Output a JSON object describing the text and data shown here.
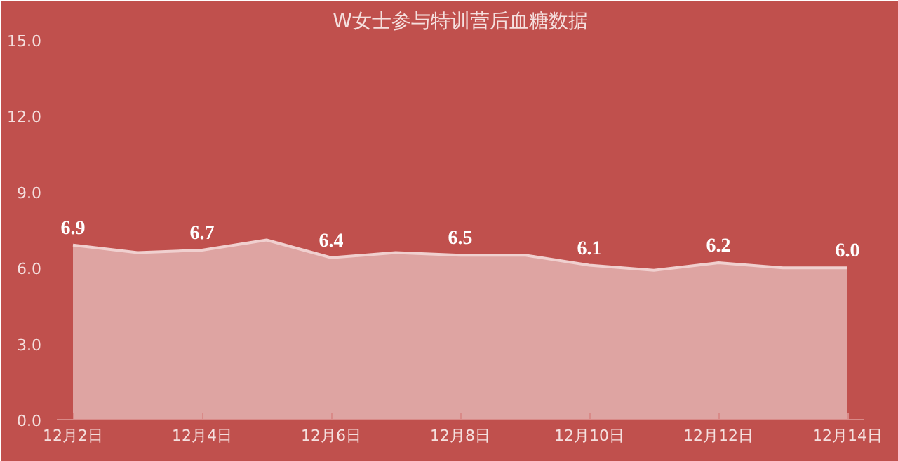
{
  "chart_data": {
    "type": "area",
    "title": "W女士参与特训营后血糖数据",
    "categories": [
      "12月2日",
      null,
      "12月4日",
      null,
      "12月6日",
      null,
      "12月8日",
      null,
      "12月10日",
      null,
      "12月12日",
      null,
      "12月14日"
    ],
    "values": [
      6.9,
      6.6,
      6.7,
      7.1,
      6.4,
      6.6,
      6.5,
      6.5,
      6.1,
      5.9,
      6.2,
      6.0,
      6.0
    ],
    "value_labels": [
      "6.9",
      null,
      "6.7",
      null,
      "6.4",
      null,
      "6.5",
      null,
      "6.1",
      null,
      "6.2",
      null,
      "6.0"
    ],
    "color": "#e3b3b2",
    "ylim": [
      0,
      15
    ],
    "yticks": [
      {
        "value": 0,
        "label": "0.0"
      },
      {
        "value": 3,
        "label": "3.0"
      },
      {
        "value": 6,
        "label": "6.0"
      },
      {
        "value": 9,
        "label": "9.0"
      },
      {
        "value": 12,
        "label": "12.0"
      },
      {
        "value": 15,
        "label": "15.0"
      }
    ],
    "grid": false
  }
}
